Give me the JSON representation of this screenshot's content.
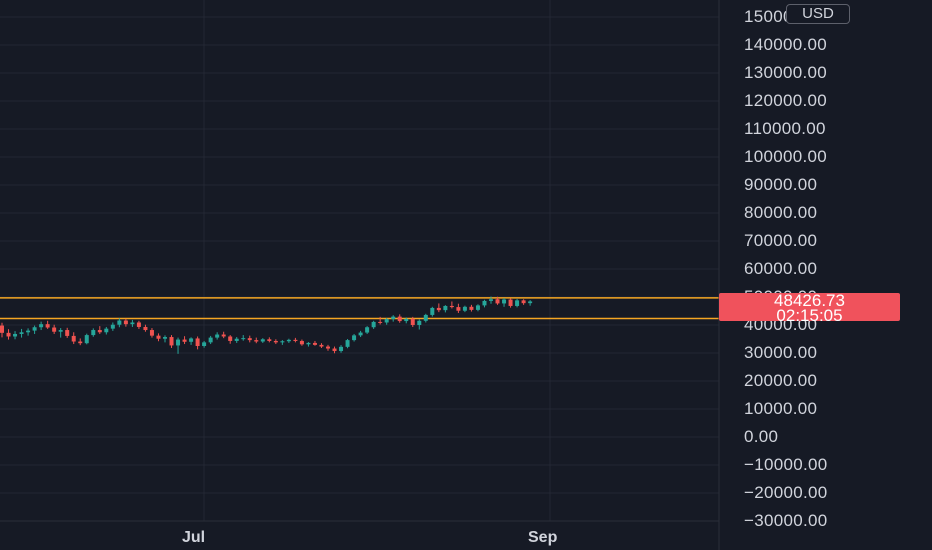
{
  "chart_data": {
    "type": "candlestick",
    "currency": "USD",
    "ylim": [
      -30000,
      150000
    ],
    "y_ticks": [
      "150000.00",
      "140000.00",
      "130000.00",
      "120000.00",
      "110000.00",
      "100000.00",
      "90000.00",
      "80000.00",
      "70000.00",
      "60000.00",
      "50000.00",
      "40000.00",
      "30000.00",
      "20000.00",
      "10000.00",
      "0.00",
      "−10000.00",
      "−20000.00",
      "−30000.00"
    ],
    "x_ticks": [
      "Jul",
      "Sep"
    ],
    "last_price": "48426.73",
    "countdown": "02:15:05",
    "horizontal_levels": [
      49700,
      42300
    ],
    "ohlc": [
      [
        39800,
        40800,
        35600,
        37200
      ],
      [
        37200,
        38500,
        34800,
        35900
      ],
      [
        35900,
        37800,
        34900,
        36800
      ],
      [
        36800,
        38600,
        35500,
        37400
      ],
      [
        37400,
        38800,
        36200,
        38000
      ],
      [
        38000,
        39800,
        36800,
        39200
      ],
      [
        39200,
        41200,
        38200,
        40300
      ],
      [
        40300,
        41500,
        38600,
        39100
      ],
      [
        39100,
        40100,
        36800,
        37600
      ],
      [
        37600,
        38900,
        35500,
        38200
      ],
      [
        38200,
        39000,
        35400,
        36100
      ],
      [
        36100,
        37400,
        33200,
        34100
      ],
      [
        34100,
        35200,
        32800,
        33500
      ],
      [
        33500,
        36900,
        33100,
        36400
      ],
      [
        36400,
        38800,
        35800,
        38200
      ],
      [
        38200,
        39600,
        36800,
        37400
      ],
      [
        37400,
        39300,
        36600,
        38700
      ],
      [
        38700,
        40900,
        37900,
        40100
      ],
      [
        40100,
        42400,
        39200,
        41600
      ],
      [
        41600,
        42200,
        39400,
        40300
      ],
      [
        40300,
        41800,
        39300,
        40900
      ],
      [
        40900,
        41500,
        38600,
        39300
      ],
      [
        39300,
        40100,
        37600,
        38200
      ],
      [
        38200,
        38900,
        35500,
        36200
      ],
      [
        36200,
        37000,
        34200,
        35100
      ],
      [
        35100,
        36300,
        33800,
        35700
      ],
      [
        35700,
        36400,
        31800,
        32700
      ],
      [
        32700,
        35500,
        29700,
        34800
      ],
      [
        34800,
        36000,
        33200,
        34000
      ],
      [
        34000,
        35600,
        32900,
        35200
      ],
      [
        35200,
        35900,
        31300,
        32500
      ],
      [
        32500,
        34300,
        31900,
        33800
      ],
      [
        33800,
        36100,
        33200,
        35500
      ],
      [
        35500,
        37400,
        34800,
        36600
      ],
      [
        36600,
        37600,
        35300,
        35900
      ],
      [
        35900,
        36400,
        33300,
        34300
      ],
      [
        34300,
        35700,
        33600,
        35100
      ],
      [
        35100,
        36400,
        34400,
        35300
      ],
      [
        35300,
        36200,
        33800,
        34600
      ],
      [
        34600,
        35500,
        33500,
        34100
      ],
      [
        34100,
        35300,
        33600,
        34900
      ],
      [
        34900,
        35600,
        33800,
        34300
      ],
      [
        34300,
        34900,
        33200,
        33800
      ],
      [
        33800,
        34600,
        32900,
        34200
      ],
      [
        34200,
        35100,
        33600,
        34700
      ],
      [
        34700,
        35400,
        33800,
        34300
      ],
      [
        34300,
        34800,
        32600,
        33100
      ],
      [
        33100,
        33900,
        32300,
        33600
      ],
      [
        33600,
        34300,
        32600,
        32900
      ],
      [
        32900,
        33500,
        31800,
        32300
      ],
      [
        32300,
        32900,
        30800,
        31600
      ],
      [
        31600,
        32300,
        29900,
        30700
      ],
      [
        30700,
        32800,
        30100,
        32200
      ],
      [
        32200,
        35000,
        31700,
        34600
      ],
      [
        34600,
        36800,
        34100,
        36300
      ],
      [
        36300,
        37900,
        35700,
        37300
      ],
      [
        37300,
        39600,
        36800,
        39200
      ],
      [
        39200,
        41500,
        38600,
        41100
      ],
      [
        41100,
        42900,
        40200,
        40900
      ],
      [
        40900,
        42500,
        40100,
        42100
      ],
      [
        42100,
        43500,
        41200,
        43000
      ],
      [
        43000,
        43800,
        40800,
        41400
      ],
      [
        41400,
        42700,
        40600,
        42200
      ],
      [
        42200,
        42900,
        39300,
        40000
      ],
      [
        40000,
        42000,
        38400,
        41500
      ],
      [
        41500,
        44000,
        40900,
        43600
      ],
      [
        43600,
        46500,
        43000,
        46100
      ],
      [
        46100,
        47700,
        44600,
        45300
      ],
      [
        45300,
        47100,
        44500,
        46800
      ],
      [
        46800,
        48400,
        45900,
        46400
      ],
      [
        46400,
        47600,
        44300,
        45100
      ],
      [
        45100,
        46900,
        44600,
        46500
      ],
      [
        46500,
        47200,
        44800,
        45400
      ],
      [
        45400,
        47400,
        44900,
        47000
      ],
      [
        47000,
        49000,
        46300,
        48600
      ],
      [
        48600,
        50200,
        47600,
        49200
      ],
      [
        49200,
        50100,
        47200,
        47700
      ],
      [
        47700,
        49600,
        46500,
        49100
      ],
      [
        49100,
        49500,
        46200,
        46800
      ],
      [
        46800,
        49300,
        46300,
        48800
      ],
      [
        48800,
        49200,
        47200,
        47800
      ],
      [
        47800,
        48900,
        46900,
        48426.73
      ]
    ]
  },
  "labels": {
    "currency": "USD",
    "price": "48426.73",
    "countdown": "02:15:05"
  },
  "colors": {
    "background": "#161a25",
    "grid": "#232733",
    "up": "#26a69a",
    "down": "#ef5350",
    "level_line": "#f5a623",
    "price_tag": "#f0525c",
    "axis_text": "#d1d4dc"
  }
}
